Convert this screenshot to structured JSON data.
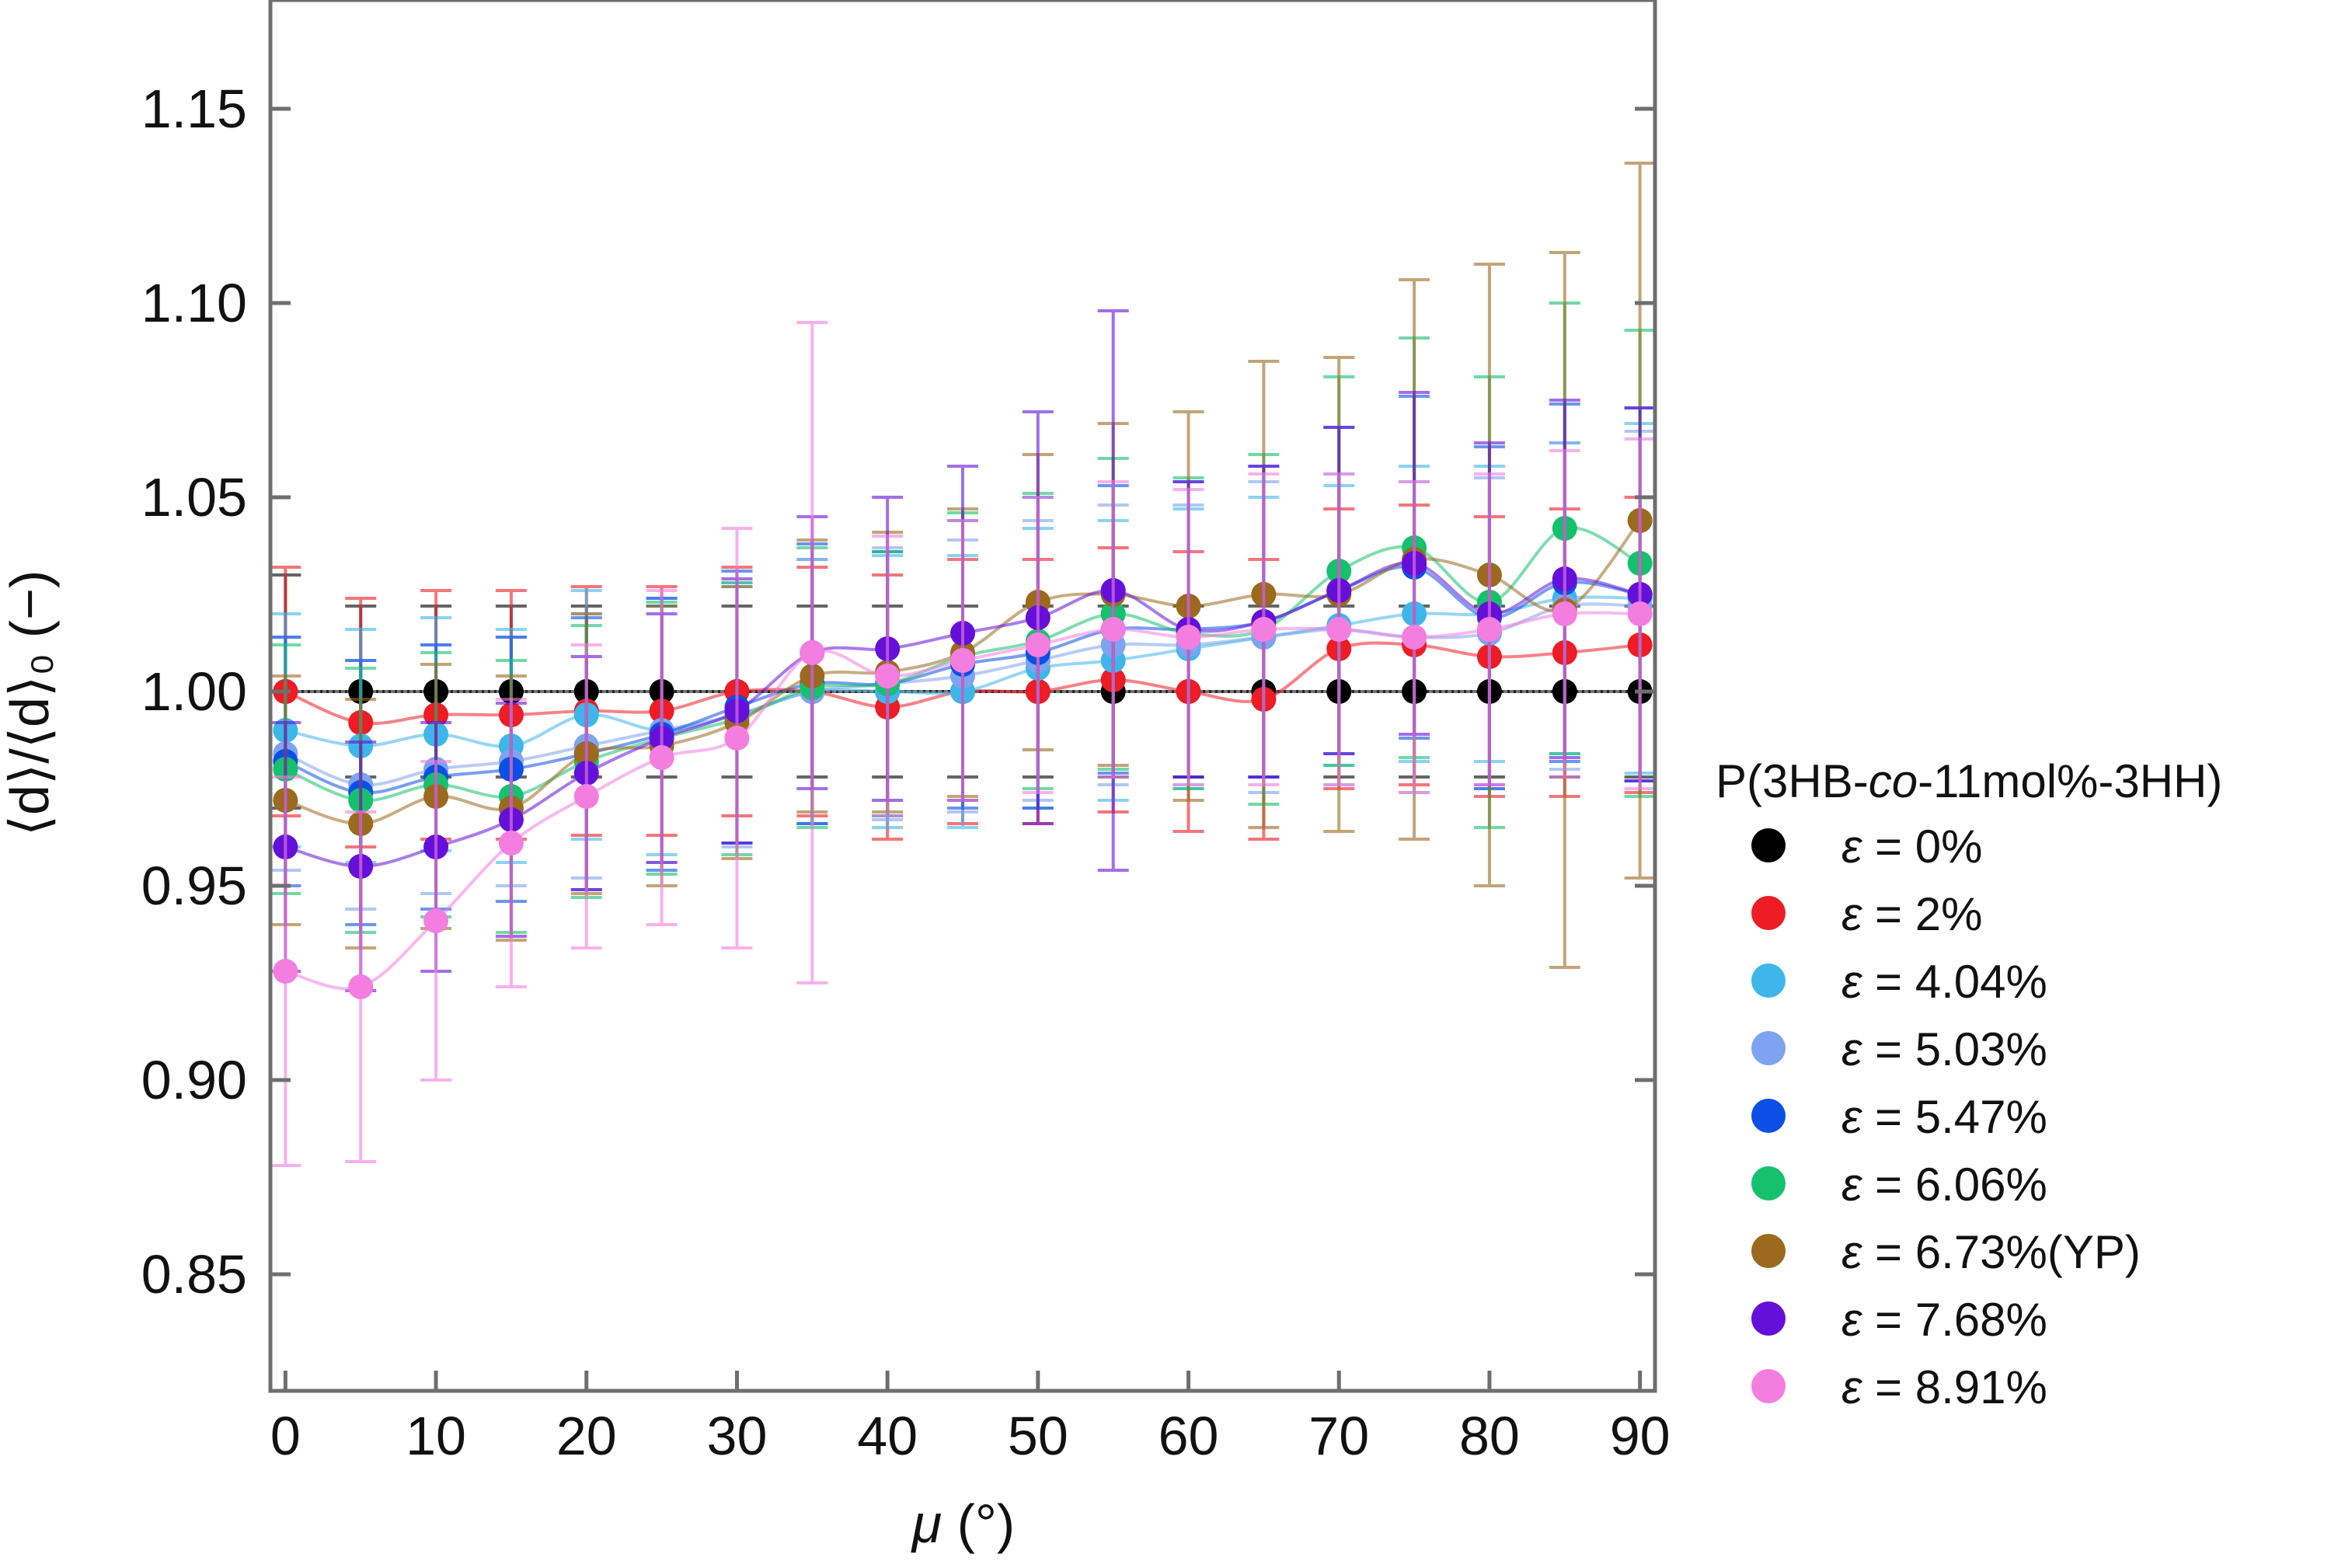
{
  "chart_data": {
    "type": "line",
    "xlabel": {
      "symbol": "μ",
      "unit": " (°)"
    },
    "ylabel": {
      "text": "⟨d⟩/⟨d⟩₀ (−)"
    },
    "xlim": [
      -1,
      91
    ],
    "ylim": [
      0.82,
      1.178
    ],
    "x_ticks": [
      0,
      10,
      20,
      30,
      40,
      50,
      60,
      70,
      80,
      90
    ],
    "x_tick_labels": [
      "0",
      "10",
      "20",
      "30",
      "40",
      "50",
      "60",
      "70",
      "80",
      "90"
    ],
    "y_ticks": [
      0.85,
      0.9,
      0.95,
      1.0,
      1.05,
      1.1,
      1.15
    ],
    "y_tick_labels": [
      "0.85",
      "0.90",
      "0.95",
      "1.00",
      "1.05",
      "1.10",
      "1.15"
    ],
    "grid": false,
    "reference_line": 1.0,
    "legend": {
      "title_parts": [
        "P(3HB-",
        "co",
        "-11mol%-3HH)"
      ],
      "position": "right"
    },
    "x": [
      0,
      5,
      10,
      15,
      20,
      25,
      30,
      35,
      40,
      45,
      50,
      55,
      60,
      65,
      70,
      75,
      80,
      85,
      90
    ],
    "series": [
      {
        "name": "= 0%",
        "color": "#000000",
        "values": [
          1.0,
          1.0,
          1.0,
          1.0,
          1.0,
          1.0,
          1.0,
          1.0,
          1.0,
          1.0,
          1.0,
          1.0,
          1.0,
          1.0,
          1.0,
          1.0,
          1.0,
          1.0,
          1.0
        ],
        "errors": [
          0.03,
          0.022,
          0.022,
          0.022,
          0.022,
          0.022,
          0.022,
          0.022,
          0.022,
          0.022,
          0.022,
          0.022,
          0.022,
          0.022,
          0.022,
          0.022,
          0.022,
          0.022,
          0.022
        ]
      },
      {
        "name": "= 2%",
        "color": "#ee1c24",
        "values": [
          1.0,
          0.992,
          0.994,
          0.994,
          0.995,
          0.995,
          1.0,
          1.0,
          0.996,
          1.0,
          1.0,
          1.003,
          1.0,
          0.998,
          1.011,
          1.012,
          1.009,
          1.01,
          1.012
        ],
        "errors": [
          0.032,
          0.032,
          0.032,
          0.032,
          0.032,
          0.032,
          0.032,
          0.032,
          0.034,
          0.034,
          0.034,
          0.034,
          0.036,
          0.036,
          0.036,
          0.036,
          0.036,
          0.037,
          0.038
        ]
      },
      {
        "name": "= 4.04%",
        "color": "#3fb6ea",
        "values": [
          0.99,
          0.986,
          0.989,
          0.986,
          0.994,
          0.99,
          0.994,
          1.0,
          1.0,
          1.0,
          1.006,
          1.008,
          1.011,
          1.014,
          1.017,
          1.02,
          1.02,
          1.024,
          1.024
        ],
        "errors": [
          0.03,
          0.03,
          0.03,
          0.03,
          0.032,
          0.032,
          0.033,
          0.034,
          0.035,
          0.035,
          0.036,
          0.036,
          0.036,
          0.036,
          0.036,
          0.038,
          0.038,
          0.04,
          0.045
        ]
      },
      {
        "name": "= 5.03%",
        "color": "#7ea3f0",
        "values": [
          0.984,
          0.976,
          0.98,
          0.982,
          0.986,
          0.99,
          0.994,
          1.0,
          1.002,
          1.004,
          1.008,
          1.012,
          1.012,
          1.014,
          1.016,
          1.014,
          1.015,
          1.022,
          1.022
        ],
        "errors": [
          0.03,
          0.032,
          0.032,
          0.032,
          0.034,
          0.034,
          0.034,
          0.034,
          0.035,
          0.035,
          0.036,
          0.036,
          0.036,
          0.04,
          0.04,
          0.04,
          0.04,
          0.042,
          0.045
        ]
      },
      {
        "name": "= 5.47%",
        "color": "#0b4fe6",
        "values": [
          0.982,
          0.974,
          0.978,
          0.98,
          0.984,
          0.989,
          0.996,
          1.002,
          1.002,
          1.007,
          1.01,
          1.016,
          1.016,
          1.018,
          1.026,
          1.032,
          1.019,
          1.028,
          1.025
        ],
        "errors": [
          0.032,
          0.034,
          0.034,
          0.034,
          0.035,
          0.035,
          0.035,
          0.036,
          0.034,
          0.037,
          0.04,
          0.037,
          0.038,
          0.04,
          0.042,
          0.044,
          0.044,
          0.046,
          0.048
        ]
      },
      {
        "name": "= 6.06%",
        "color": "#16c16d",
        "values": [
          0.98,
          0.972,
          0.976,
          0.973,
          0.982,
          0.988,
          0.993,
          1.001,
          1.002,
          1.009,
          1.013,
          1.02,
          1.015,
          1.016,
          1.031,
          1.037,
          1.023,
          1.042,
          1.033
        ],
        "errors": [
          0.032,
          0.034,
          0.034,
          0.035,
          0.035,
          0.035,
          0.035,
          0.036,
          0.034,
          0.037,
          0.038,
          0.04,
          0.04,
          0.045,
          0.05,
          0.054,
          0.058,
          0.058,
          0.06
        ]
      },
      {
        "name": "= 6.73%(YP)",
        "color": "#9b6a1e",
        "values": [
          0.972,
          0.966,
          0.973,
          0.97,
          0.984,
          0.986,
          0.992,
          1.004,
          1.005,
          1.01,
          1.023,
          1.025,
          1.022,
          1.025,
          1.025,
          1.034,
          1.03,
          1.021,
          1.044
        ],
        "errors": [
          0.032,
          0.032,
          0.034,
          0.034,
          0.036,
          0.036,
          0.035,
          0.035,
          0.036,
          0.037,
          0.038,
          0.044,
          0.05,
          0.06,
          0.061,
          0.072,
          0.08,
          0.092,
          0.092
        ]
      },
      {
        "name": "= 7.68%",
        "color": "#6510d8",
        "values": [
          0.96,
          0.955,
          0.96,
          0.967,
          0.979,
          0.988,
          0.995,
          1.01,
          1.011,
          1.015,
          1.019,
          1.026,
          1.016,
          1.018,
          1.026,
          1.033,
          1.02,
          1.029,
          1.025
        ],
        "errors": [
          0.032,
          0.032,
          0.032,
          0.03,
          0.03,
          0.032,
          0.034,
          0.035,
          0.039,
          0.043,
          0.053,
          0.072,
          0.038,
          0.04,
          0.042,
          0.044,
          0.044,
          0.046,
          0.048
        ]
      },
      {
        "name": "= 8.91%",
        "color": "#f47ee0",
        "values": [
          0.928,
          0.924,
          0.941,
          0.961,
          0.973,
          0.983,
          0.988,
          1.01,
          1.004,
          1.008,
          1.012,
          1.016,
          1.014,
          1.016,
          1.016,
          1.014,
          1.016,
          1.02,
          1.02
        ],
        "errors": [
          0.05,
          0.045,
          0.041,
          0.037,
          0.039,
          0.043,
          0.054,
          0.085,
          0.036,
          0.036,
          0.038,
          0.038,
          0.038,
          0.04,
          0.04,
          0.04,
          0.04,
          0.042,
          0.045
        ]
      }
    ]
  }
}
